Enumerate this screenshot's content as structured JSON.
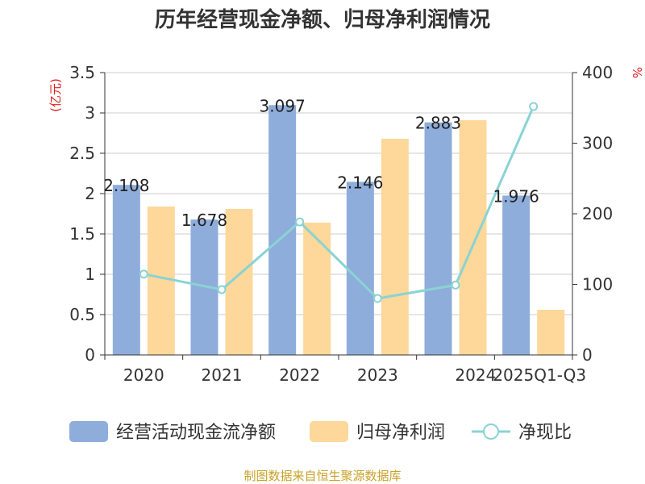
{
  "title": "历年经营现金净额、归母净利润情况",
  "source": "制图数据来自恒生聚源数据库",
  "chart_data": {
    "type": "bar",
    "categories": [
      "2020",
      "2021",
      "2022",
      "2023",
      "2024",
      "2025Q1-Q3"
    ],
    "series": [
      {
        "name": "经营活动现金流净额",
        "type": "bar",
        "axis": "left",
        "color": "#8eaddb",
        "values": [
          2.108,
          1.678,
          3.097,
          2.146,
          2.883,
          1.976
        ]
      },
      {
        "name": "归母净利润",
        "type": "bar",
        "axis": "left",
        "color": "#fdd89a",
        "values": [
          1.84,
          1.81,
          1.64,
          2.68,
          2.91,
          0.56
        ]
      },
      {
        "name": "净现比",
        "type": "line",
        "axis": "right",
        "color": "#8ad3d4",
        "values": [
          114.5,
          92.6,
          188.5,
          80.0,
          99.0,
          352.0
        ]
      }
    ],
    "data_labels": [
      "2.108",
      "1.678",
      "3.097",
      "2.146",
      "2.883",
      "1.976"
    ],
    "y_left": {
      "label": "(亿元)",
      "min": 0,
      "max": 3.5,
      "ticks": [
        "0",
        "0.5",
        "1",
        "1.5",
        "2",
        "2.5",
        "3",
        "3.5"
      ]
    },
    "y_right": {
      "label": "%",
      "min": 0,
      "max": 400,
      "ticks": [
        "0",
        "100",
        "200",
        "300",
        "400"
      ]
    },
    "grid": true,
    "legend_position": "bottom"
  }
}
